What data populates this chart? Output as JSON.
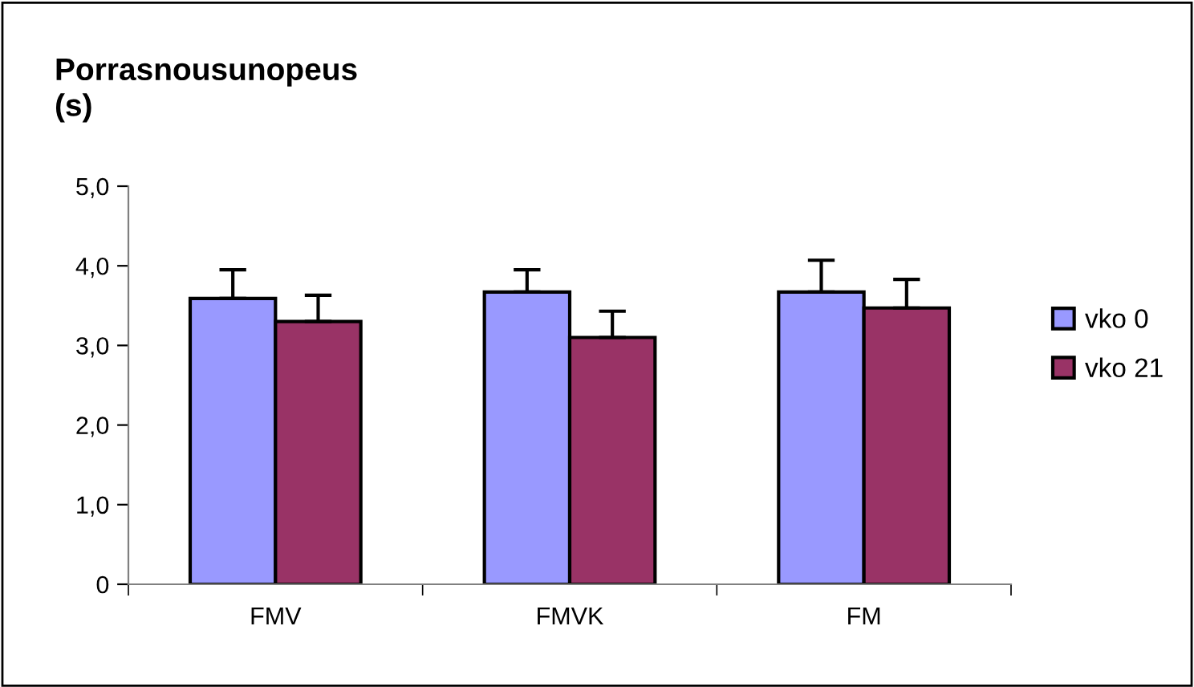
{
  "chart_data": {
    "type": "bar",
    "title": "Porrasnousunopeus\n(s)",
    "categories": [
      "FMV",
      "FMVK",
      "FM"
    ],
    "series": [
      {
        "name": "vko 0",
        "color": "#9999ff",
        "values": [
          3.59,
          3.67,
          3.67
        ],
        "errors": [
          [
            3.59,
            3.95
          ],
          [
            3.67,
            3.95
          ],
          [
            3.67,
            4.07
          ]
        ]
      },
      {
        "name": "vko 21",
        "color": "#993366",
        "values": [
          3.3,
          3.1,
          3.47
        ],
        "errors": [
          [
            3.3,
            3.63
          ],
          [
            3.1,
            3.43
          ],
          [
            3.47,
            3.83
          ]
        ]
      }
    ],
    "ylim": [
      0,
      5
    ],
    "yticks": [
      {
        "value": 0,
        "label": "0"
      },
      {
        "value": 1,
        "label": "1,0"
      },
      {
        "value": 2,
        "label": "2,0"
      },
      {
        "value": 3,
        "label": "3,0"
      },
      {
        "value": 4,
        "label": "4,0"
      },
      {
        "value": 5,
        "label": "5,0"
      }
    ],
    "grid": false,
    "legend": "right"
  }
}
